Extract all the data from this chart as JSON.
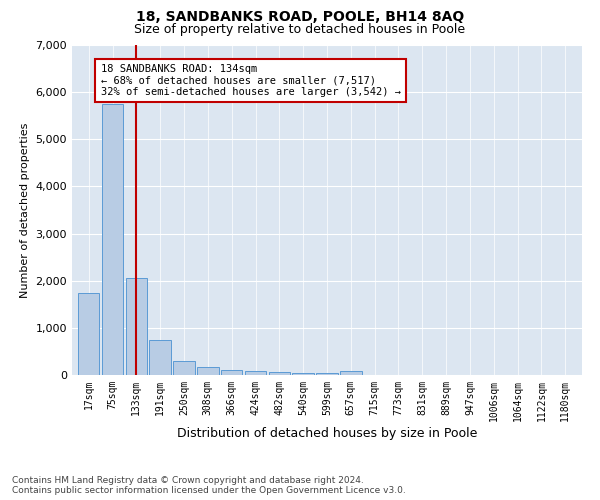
{
  "title": "18, SANDBANKS ROAD, POOLE, BH14 8AQ",
  "subtitle": "Size of property relative to detached houses in Poole",
  "xlabel": "Distribution of detached houses by size in Poole",
  "ylabel": "Number of detached properties",
  "categories": [
    "17sqm",
    "75sqm",
    "133sqm",
    "191sqm",
    "250sqm",
    "308sqm",
    "366sqm",
    "424sqm",
    "482sqm",
    "540sqm",
    "599sqm",
    "657sqm",
    "715sqm",
    "773sqm",
    "831sqm",
    "889sqm",
    "947sqm",
    "1006sqm",
    "1064sqm",
    "1122sqm",
    "1180sqm"
  ],
  "values": [
    1750,
    5750,
    2050,
    750,
    300,
    175,
    100,
    75,
    55,
    45,
    35,
    75,
    0,
    0,
    0,
    0,
    0,
    0,
    0,
    0,
    0
  ],
  "highlight_index": 2,
  "highlight_color": "#c00000",
  "bar_color": "#b8cce4",
  "bar_edge_color": "#5b9bd5",
  "background_color": "#dce6f1",
  "ylim": [
    0,
    7000
  ],
  "annotation_box_text": "18 SANDBANKS ROAD: 134sqm\n← 68% of detached houses are smaller (7,517)\n32% of semi-detached houses are larger (3,542) →",
  "footnote": "Contains HM Land Registry data © Crown copyright and database right 2024.\nContains public sector information licensed under the Open Government Licence v3.0.",
  "title_fontsize": 10,
  "subtitle_fontsize": 9,
  "xlabel_fontsize": 9,
  "ylabel_fontsize": 8,
  "tick_fontsize": 7,
  "annotation_fontsize": 7.5,
  "footnote_fontsize": 6.5
}
